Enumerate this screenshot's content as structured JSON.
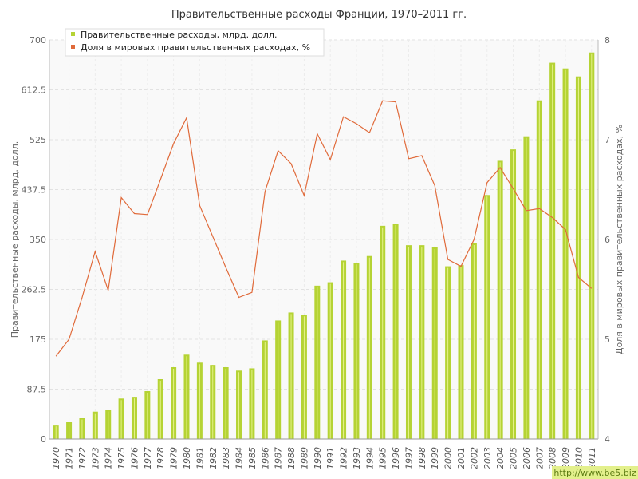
{
  "chart_data": {
    "type": "bar",
    "title": "Правительственные расходы Франции, 1970–2011 гг.",
    "ylabel_left": "Правительственные расходы, млрд. долл.",
    "ylabel_right": "Доля в мировых правительственных расходах, %",
    "categories": [
      "1970",
      "1971",
      "1972",
      "1973",
      "1974",
      "1975",
      "1976",
      "1977",
      "1978",
      "1979",
      "1980",
      "1981",
      "1982",
      "1983",
      "1984",
      "1985",
      "1986",
      "1987",
      "1988",
      "1989",
      "1990",
      "1991",
      "1992",
      "1993",
      "1994",
      "1995",
      "1996",
      "1997",
      "1998",
      "1999",
      "2000",
      "2001",
      "2002",
      "2003",
      "2004",
      "2005",
      "2006",
      "2007",
      "2008",
      "2009",
      "2010",
      "2011"
    ],
    "ylim_left": [
      0,
      700
    ],
    "yticks_left": [
      "0",
      "87.5",
      "175",
      "262.5",
      "350",
      "437.5",
      "525",
      "612.5",
      "700"
    ],
    "ylim_right": [
      4,
      8
    ],
    "yticks_right": [
      "4",
      "5",
      "6",
      "7",
      "8"
    ],
    "grid": true,
    "legend_position": "top-left",
    "series": [
      {
        "name": "Правительственные расходы, млрд. долл.",
        "type": "bar",
        "axis": "left",
        "color": "#b5d334",
        "values": [
          25,
          30,
          37,
          48,
          51,
          71,
          74,
          84,
          105,
          126,
          148,
          134,
          130,
          126,
          120,
          124,
          173,
          208,
          222,
          218,
          269,
          275,
          313,
          309,
          321,
          374,
          378,
          340,
          340,
          336,
          303,
          305,
          343,
          428,
          488,
          508,
          531,
          594,
          660,
          650,
          636,
          678
        ]
      },
      {
        "name": "Доля в мировых правительственных расходах, %",
        "type": "line",
        "axis": "right",
        "color": "#e06a3a",
        "values": [
          4.83,
          5.0,
          5.42,
          5.88,
          5.49,
          6.42,
          6.26,
          6.25,
          6.6,
          6.96,
          7.22,
          6.34,
          6.03,
          5.72,
          5.42,
          5.47,
          6.48,
          6.89,
          6.76,
          6.44,
          7.06,
          6.8,
          7.23,
          7.16,
          7.07,
          7.39,
          7.38,
          6.81,
          6.84,
          6.54,
          5.8,
          5.73,
          6.0,
          6.57,
          6.72,
          6.51,
          6.29,
          6.31,
          6.22,
          6.1,
          5.62,
          5.51
        ]
      }
    ]
  },
  "watermark": "http://www.be5.biz"
}
